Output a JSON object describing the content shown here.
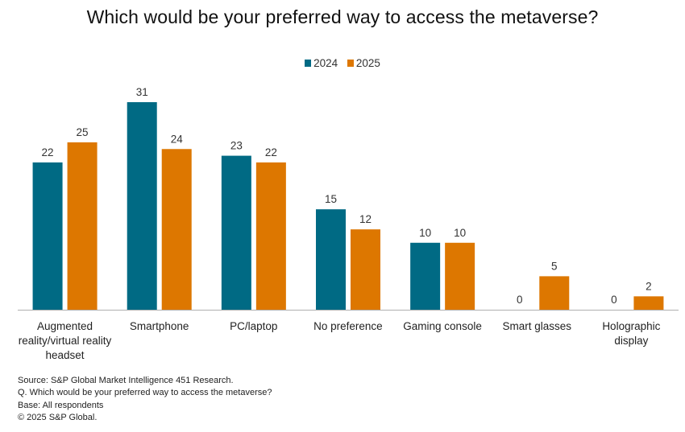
{
  "chart_data": {
    "type": "bar",
    "title": "Which would be your preferred way to access the metaverse?",
    "xlabel": "",
    "ylabel": "",
    "ylim": [
      0,
      31
    ],
    "grid": false,
    "legend_position": "top-center",
    "categories": [
      "Augmented reality/virtual reality headset",
      "Smartphone",
      "PC/laptop",
      "No preference",
      "Gaming console",
      "Smart glasses",
      "Holographic display"
    ],
    "series": [
      {
        "name": "2024",
        "color": "#006A84",
        "values": [
          22,
          31,
          23,
          15,
          10,
          0,
          0
        ]
      },
      {
        "name": "2025",
        "color": "#DD7700",
        "values": [
          25,
          24,
          22,
          12,
          10,
          5,
          2
        ]
      }
    ]
  },
  "legend": [
    {
      "label": "2024",
      "color": "#006A84"
    },
    {
      "label": "2025",
      "color": "#DD7700"
    }
  ],
  "footer": {
    "source": "Source: S&P Global Market Intelligence 451 Research.",
    "question": "Q. Which would be your preferred way to access the metaverse?",
    "base": "Base: All respondents",
    "copyright": "© 2025 S&P Global."
  }
}
